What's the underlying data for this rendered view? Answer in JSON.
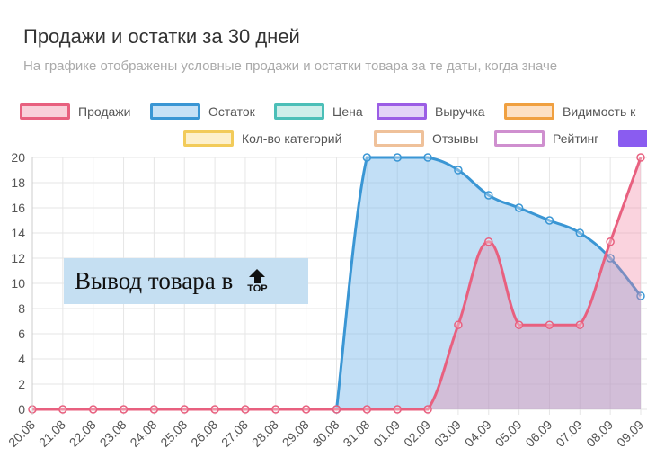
{
  "header": {
    "title": "Продажи и остатки за 30 дней",
    "subtitle": "На графике отображены условные продажи и остатки товара за те даты, когда значе"
  },
  "legend": [
    {
      "label": "Продажи",
      "color": "#e8607f",
      "fill": "#f9d0da",
      "hidden": false
    },
    {
      "label": "Остаток",
      "color": "#3a96d4",
      "fill": "#c6e1f6",
      "hidden": false
    },
    {
      "label": "Цена",
      "color": "#4bbfb8",
      "fill": "#cdeeea",
      "hidden": true
    },
    {
      "label": "Выручка",
      "color": "#9b5de5",
      "fill": "#e3d3f7",
      "hidden": true
    },
    {
      "label": "Видимость к",
      "color": "#f0a040",
      "fill": "#fde0c3",
      "hidden": true
    },
    {
      "label": "Кол-во категорий",
      "color": "#f2cb5a",
      "fill": "#fdf0cc",
      "hidden": true
    },
    {
      "label": "Отзывы",
      "color": "#efc19a",
      "fill": "#ffffff",
      "hidden": true
    },
    {
      "label": "Рейтинг",
      "color": "#cf8fcf",
      "fill": "#ffffff",
      "hidden": true
    },
    {
      "label": "",
      "color": "#8a5cf0",
      "fill": "#8a5cf0",
      "hidden": false
    }
  ],
  "overlay": {
    "text": "Вывод товара в",
    "badge": "TOP",
    "icon": "arrow-up-icon"
  },
  "chart_data": {
    "type": "area",
    "title": "",
    "xlabel": "",
    "ylabel": "",
    "ylim": [
      0,
      20
    ],
    "yticks": [
      "0",
      "2",
      "4",
      "6",
      "8",
      "10",
      "12",
      "14",
      "16",
      "18",
      "20"
    ],
    "grid": true,
    "legend_position": "top",
    "categories": [
      "20.08",
      "21.08",
      "22.08",
      "23.08",
      "24.08",
      "25.08",
      "26.08",
      "27.08",
      "28.08",
      "29.08",
      "30.08",
      "31.08",
      "01.09",
      "02.09",
      "03.09",
      "04.09",
      "05.09",
      "06.09",
      "07.09",
      "08.09",
      "09.09"
    ],
    "series": [
      {
        "name": "Остаток",
        "color": "#3a96d4",
        "fill": "rgba(120,185,235,0.45)",
        "values": [
          null,
          null,
          null,
          null,
          null,
          null,
          null,
          null,
          null,
          null,
          0,
          20,
          20,
          20,
          19,
          17,
          16,
          15,
          14,
          12,
          9
        ]
      },
      {
        "name": "Продажи",
        "color": "#e8607f",
        "fill": "rgba(240,130,160,0.35)",
        "values": [
          0,
          0,
          0,
          0,
          0,
          0,
          0,
          0,
          0,
          0,
          0,
          0,
          0,
          0,
          6.7,
          13.3,
          6.7,
          6.7,
          6.7,
          13.3,
          20
        ]
      }
    ]
  }
}
